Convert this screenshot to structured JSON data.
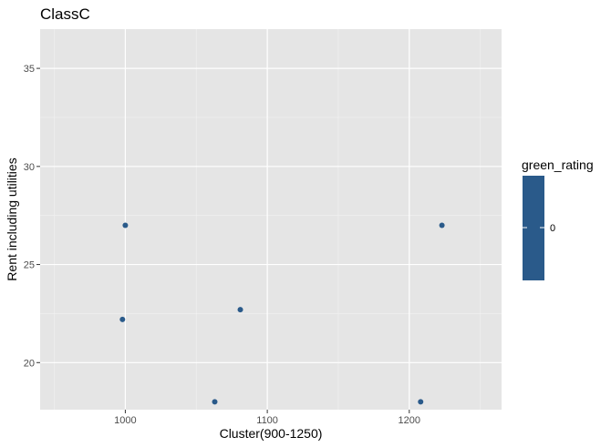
{
  "chart_data": {
    "type": "scatter",
    "title": "ClassC",
    "xlabel": "Cluster(900-1250)",
    "ylabel": "Rent including utilities",
    "xlim": [
      940,
      1265
    ],
    "ylim": [
      17.6,
      37
    ],
    "x_ticks": [
      1000,
      1100,
      1200
    ],
    "y_ticks": [
      20,
      25,
      30,
      35
    ],
    "grid": true,
    "points": [
      {
        "x": 1000,
        "y": 27.0,
        "green_rating": 0
      },
      {
        "x": 998,
        "y": 22.2,
        "green_rating": 0
      },
      {
        "x": 1081,
        "y": 22.7,
        "green_rating": 0
      },
      {
        "x": 1063,
        "y": 18.0,
        "green_rating": 0
      },
      {
        "x": 1223,
        "y": 27.0,
        "green_rating": 0
      },
      {
        "x": 1208,
        "y": 18.0,
        "green_rating": 0
      }
    ],
    "point_color": "#2a5a8a",
    "panel_background": "#e5e5e5",
    "legend": {
      "title": "green_rating",
      "placement": "right",
      "labels": [
        "0"
      ],
      "color": "#2a5a8a"
    }
  }
}
